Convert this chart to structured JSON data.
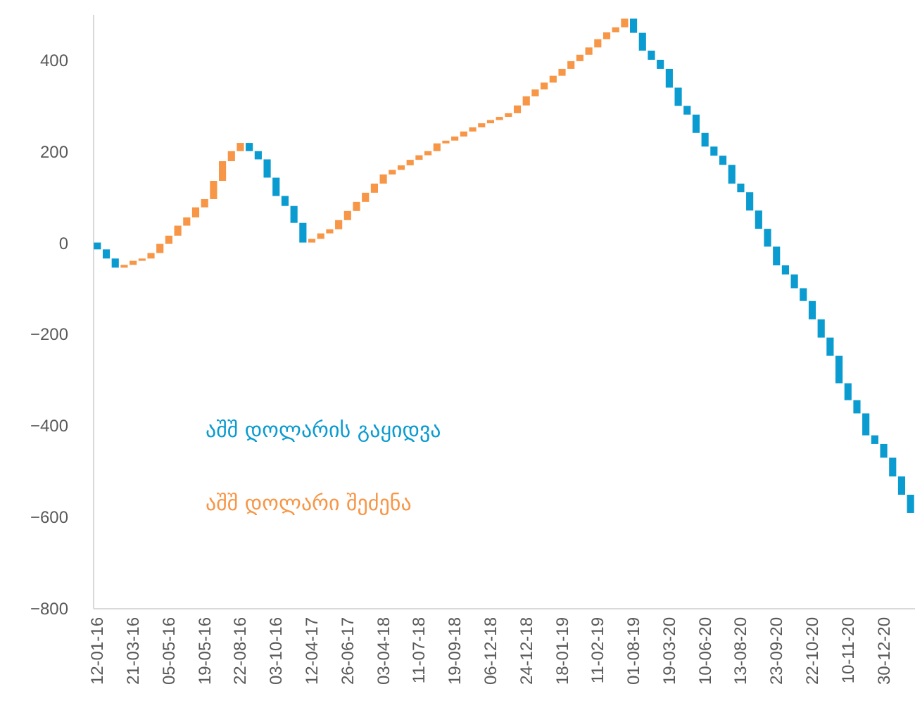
{
  "chart_data": {
    "type": "bar",
    "categories": [
      "12-01-16",
      null,
      null,
      null,
      "21-03-16",
      null,
      null,
      null,
      "05-05-16",
      null,
      null,
      null,
      "19-05-16",
      null,
      null,
      null,
      "22-08-16",
      null,
      null,
      null,
      "03-10-16",
      null,
      null,
      null,
      "12-04-17",
      null,
      null,
      null,
      "26-06-17",
      null,
      null,
      null,
      "03-04-18",
      null,
      null,
      null,
      "11-07-18",
      null,
      null,
      null,
      "19-09-18",
      null,
      null,
      null,
      "06-12-18",
      null,
      null,
      null,
      "24-12-18",
      null,
      null,
      null,
      "18-01-19",
      null,
      null,
      null,
      "11-02-19",
      null,
      null,
      null,
      "01-08-19",
      null,
      null,
      null,
      "19-03-20",
      null,
      null,
      null,
      "10-06-20",
      null,
      null,
      null,
      "13-08-20",
      null,
      null,
      null,
      "23-09-20",
      null,
      null,
      null,
      "22-10-20",
      null,
      null,
      null,
      "10-11-20",
      null,
      null,
      null,
      "30-12-20",
      null,
      null,
      null
    ],
    "series": [
      {
        "name": "აშშ დოლარის გაყიდვა",
        "color": "#0a9bd0",
        "base": [
          0,
          -15,
          -35,
          null,
          null,
          null,
          null,
          null,
          null,
          null,
          null,
          null,
          null,
          null,
          null,
          null,
          null,
          218,
          200,
          182,
          142,
          102,
          80,
          43,
          null,
          null,
          null,
          null,
          null,
          null,
          null,
          null,
          null,
          null,
          null,
          null,
          null,
          null,
          null,
          null,
          null,
          null,
          null,
          null,
          null,
          null,
          null,
          null,
          null,
          null,
          null,
          null,
          null,
          null,
          null,
          null,
          null,
          null,
          null,
          null,
          490,
          459,
          420,
          400,
          380,
          339,
          299,
          280,
          240,
          210,
          190,
          170,
          129,
          110,
          70,
          30,
          -9,
          -50,
          -70,
          -100,
          -128,
          -168,
          -208,
          -248,
          -308,
          -345,
          -374,
          -422,
          -441,
          -471,
          -512,
          -552
        ],
        "values": [
          -15,
          -20,
          -20,
          null,
          null,
          null,
          null,
          null,
          null,
          null,
          null,
          null,
          null,
          null,
          null,
          null,
          null,
          -18,
          -18,
          -40,
          -40,
          -22,
          -37,
          -43,
          null,
          null,
          null,
          null,
          null,
          null,
          null,
          null,
          null,
          null,
          null,
          null,
          null,
          null,
          null,
          null,
          null,
          null,
          null,
          null,
          null,
          null,
          null,
          null,
          null,
          null,
          null,
          null,
          null,
          null,
          null,
          null,
          null,
          null,
          null,
          null,
          -31,
          -39,
          -20,
          -20,
          -41,
          -40,
          -19,
          -40,
          -30,
          -20,
          -20,
          -41,
          -19,
          -40,
          -40,
          -39,
          -41,
          -20,
          -30,
          -28,
          -40,
          -40,
          -40,
          -60,
          -37,
          -29,
          -48,
          -19,
          -30,
          -41,
          -40,
          -40
        ]
      },
      {
        "name": "აშშ დოლარი შეძენა",
        "color": "#f79646",
        "base": [
          null,
          null,
          null,
          -55,
          -49,
          -40,
          -35,
          -23,
          -3,
          15,
          37,
          55,
          77,
          95,
          135,
          178,
          200,
          null,
          null,
          null,
          null,
          null,
          null,
          null,
          0,
          8,
          20,
          29,
          49,
          69,
          89,
          109,
          129,
          149,
          159,
          169,
          181,
          191,
          200,
          217,
          223,
          232,
          243,
          252,
          261,
          268,
          275,
          283,
          300,
          320,
          335,
          350,
          365,
          380,
          397,
          411,
          427,
          445,
          460,
          471,
          null,
          null,
          null,
          null,
          null,
          null,
          null,
          null,
          null,
          null,
          null,
          null,
          null,
          null,
          null,
          null,
          null,
          null,
          null,
          null,
          null,
          null,
          null,
          null,
          null,
          null,
          null,
          null,
          null,
          null,
          null,
          null
        ],
        "values": [
          null,
          null,
          null,
          6,
          9,
          5,
          12,
          20,
          18,
          22,
          18,
          22,
          18,
          40,
          43,
          22,
          18,
          null,
          null,
          null,
          null,
          null,
          null,
          null,
          8,
          12,
          9,
          20,
          20,
          20,
          20,
          20,
          20,
          10,
          10,
          12,
          10,
          9,
          17,
          6,
          9,
          11,
          9,
          9,
          7,
          7,
          8,
          17,
          20,
          15,
          15,
          15,
          15,
          17,
          14,
          16,
          18,
          15,
          11,
          19,
          null,
          null,
          null,
          null,
          null,
          null,
          null,
          null,
          null,
          null,
          null,
          null,
          null,
          null,
          null,
          null,
          null,
          null,
          null,
          null,
          null,
          null,
          null,
          null,
          null,
          null,
          null,
          null,
          null,
          null,
          null,
          null
        ]
      }
    ],
    "ylim": [
      -800,
      500
    ],
    "yticks": [
      -800,
      -600,
      -400,
      -200,
      0,
      200,
      400
    ],
    "grid": false,
    "legend": "left"
  }
}
